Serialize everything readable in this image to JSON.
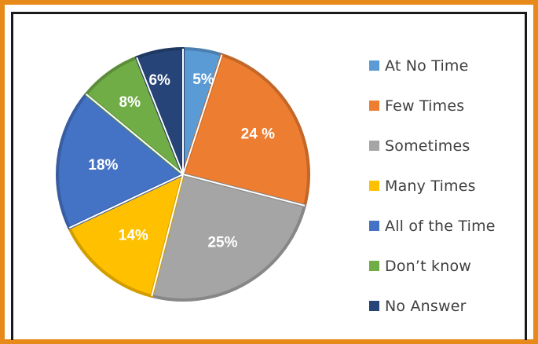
{
  "chart_data": {
    "type": "pie",
    "categories": [
      "At No Time",
      "Few Times",
      "Sometimes",
      "Many Times",
      "All of the Time",
      "Don’t know",
      "No Answer"
    ],
    "values": [
      5,
      24,
      25,
      14,
      18,
      8,
      6
    ],
    "data_labels": [
      "5%",
      "24 %",
      "25%",
      "14%",
      "18%",
      "8%",
      "6%"
    ],
    "colors": [
      "#5b9bd5",
      "#ed7d31",
      "#a5a5a5",
      "#ffc000",
      "#4472c4",
      "#70ad47",
      "#264478"
    ],
    "start_angle_deg": 0,
    "direction": "clockwise",
    "legend_position": "right"
  }
}
